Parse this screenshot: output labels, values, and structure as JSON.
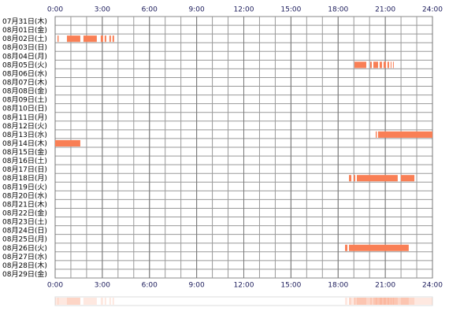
{
  "chart_data": {
    "type": "timeline",
    "color": "#f97f55",
    "grid": true,
    "xlim": [
      0,
      24
    ],
    "xticks": [
      {
        "value": 0,
        "label": "0:00"
      },
      {
        "value": 3,
        "label": "3:00"
      },
      {
        "value": 6,
        "label": "6:00"
      },
      {
        "value": 9,
        "label": "9:00"
      },
      {
        "value": 12,
        "label": "12:00"
      },
      {
        "value": 15,
        "label": "15:00"
      },
      {
        "value": 18,
        "label": "18:00"
      },
      {
        "value": 21,
        "label": "21:00"
      },
      {
        "value": 24,
        "label": "24:00"
      }
    ],
    "rows": [
      {
        "label": "07月31日(木)",
        "segments": []
      },
      {
        "label": "08月01日(金)",
        "segments": []
      },
      {
        "label": "08月02日(土)",
        "segments": [
          [
            0.15,
            0.22
          ],
          [
            0.75,
            1.6
          ],
          [
            1.8,
            2.65
          ],
          [
            2.9,
            3.05
          ],
          [
            3.15,
            3.25
          ],
          [
            3.45,
            3.55
          ],
          [
            3.65,
            3.75
          ]
        ]
      },
      {
        "label": "08月03日(日)",
        "segments": []
      },
      {
        "label": "08月04日(月)",
        "segments": []
      },
      {
        "label": "08月05日(火)",
        "segments": [
          [
            19.04,
            19.79
          ],
          [
            20.04,
            20.14
          ],
          [
            20.24,
            20.54
          ],
          [
            20.64,
            20.79
          ],
          [
            20.89,
            21.04
          ],
          [
            21.14,
            21.24
          ],
          [
            21.34,
            21.39
          ],
          [
            21.49,
            21.54
          ]
        ]
      },
      {
        "label": "08月06日(水)",
        "segments": []
      },
      {
        "label": "08月07日(木)",
        "segments": []
      },
      {
        "label": "08月08日(金)",
        "segments": []
      },
      {
        "label": "08月09日(土)",
        "segments": []
      },
      {
        "label": "08月10日(日)",
        "segments": []
      },
      {
        "label": "08月11日(月)",
        "segments": []
      },
      {
        "label": "08月12日(火)",
        "segments": []
      },
      {
        "label": "08月13日(水)",
        "segments": [
          [
            20.39,
            20.46
          ],
          [
            20.54,
            24
          ]
        ]
      },
      {
        "label": "08月14日(木)",
        "segments": [
          [
            0,
            1.6
          ]
        ]
      },
      {
        "label": "08月15日(金)",
        "segments": []
      },
      {
        "label": "08月16日(土)",
        "segments": []
      },
      {
        "label": "08月17日(日)",
        "segments": []
      },
      {
        "label": "08月18日(月)",
        "segments": [
          [
            18.69,
            18.84
          ],
          [
            18.99,
            19.09
          ],
          [
            19.19,
            21.79
          ],
          [
            21.99,
            22.85
          ]
        ]
      },
      {
        "label": "08月19日(火)",
        "segments": []
      },
      {
        "label": "08月20日(水)",
        "segments": []
      },
      {
        "label": "08月21日(木)",
        "segments": []
      },
      {
        "label": "08月22日(金)",
        "segments": []
      },
      {
        "label": "08月23日(土)",
        "segments": []
      },
      {
        "label": "08月24日(日)",
        "segments": []
      },
      {
        "label": "08月25日(月)",
        "segments": []
      },
      {
        "label": "08月26日(火)",
        "segments": [
          [
            18.44,
            18.59
          ],
          [
            18.69,
            22.49
          ]
        ]
      },
      {
        "label": "08月27日(水)",
        "segments": []
      },
      {
        "label": "08月28日(木)",
        "segments": []
      },
      {
        "label": "08月29日(金)",
        "segments": []
      }
    ]
  }
}
